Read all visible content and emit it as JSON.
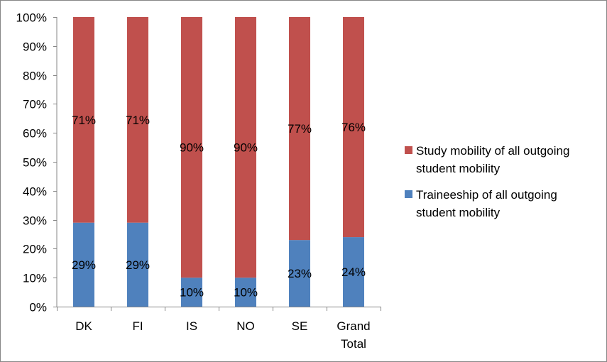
{
  "chart_data": {
    "type": "bar",
    "stacked": true,
    "categories": [
      "DK",
      "FI",
      "IS",
      "NO",
      "SE",
      "Grand Total"
    ],
    "series": [
      {
        "name": "Traineeship of all outgoing student mobility",
        "values": [
          29,
          29,
          10,
          10,
          23,
          24
        ],
        "labels": [
          "29%",
          "29%",
          "10%",
          "10%",
          "23%",
          "24%"
        ],
        "color": "#4f81bd"
      },
      {
        "name": "Study mobility of all outgoing student mobility",
        "values": [
          71,
          71,
          90,
          90,
          77,
          76
        ],
        "labels": [
          "71%",
          "71%",
          "90%",
          "90%",
          "77%",
          "76%"
        ],
        "color": "#c0504d"
      }
    ],
    "ylim": [
      0,
      100
    ],
    "yticks": [
      "0%",
      "10%",
      "20%",
      "30%",
      "40%",
      "50%",
      "60%",
      "70%",
      "80%",
      "90%",
      "100%"
    ],
    "title": "",
    "xlabel": "",
    "ylabel": "",
    "grid": false,
    "legend_position": "right"
  }
}
